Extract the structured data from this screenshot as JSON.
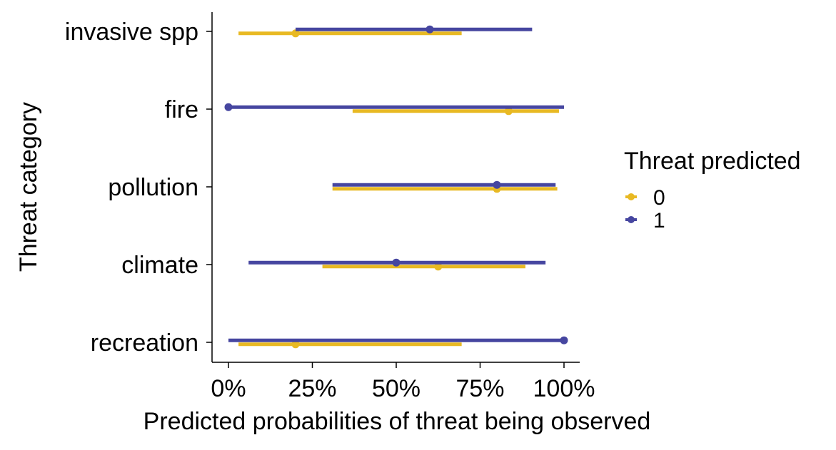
{
  "chart_data": {
    "type": "pointrange",
    "title": "",
    "xlabel": "Predicted probabilities of threat being observed",
    "ylabel": "Threat category",
    "xlim": [
      0,
      1
    ],
    "x_ticks": [
      0,
      0.25,
      0.5,
      0.75,
      1.0
    ],
    "x_tick_labels": [
      "0%",
      "25%",
      "50%",
      "75%",
      "100%"
    ],
    "categories": [
      "invasive spp",
      "fire",
      "pollution",
      "climate",
      "recreation"
    ],
    "legend": {
      "title": "Threat predicted",
      "placement": "right",
      "entries": [
        "0",
        "1"
      ]
    },
    "series": [
      {
        "name": "0",
        "color": "#E8B923",
        "points": [
          {
            "category": "invasive spp",
            "estimate": 0.2,
            "lower": 0.03,
            "upper": 0.695
          },
          {
            "category": "fire",
            "estimate": 0.835,
            "lower": 0.37,
            "upper": 0.985
          },
          {
            "category": "pollution",
            "estimate": 0.8,
            "lower": 0.31,
            "upper": 0.98
          },
          {
            "category": "climate",
            "estimate": 0.625,
            "lower": 0.28,
            "upper": 0.885
          },
          {
            "category": "recreation",
            "estimate": 0.2,
            "lower": 0.03,
            "upper": 0.695
          }
        ]
      },
      {
        "name": "1",
        "color": "#4646A0",
        "points": [
          {
            "category": "invasive spp",
            "estimate": 0.6,
            "lower": 0.2,
            "upper": 0.905
          },
          {
            "category": "fire",
            "estimate": 0.0,
            "lower": 0.0,
            "upper": 1.0
          },
          {
            "category": "pollution",
            "estimate": 0.8,
            "lower": 0.31,
            "upper": 0.975
          },
          {
            "category": "climate",
            "estimate": 0.5,
            "lower": 0.06,
            "upper": 0.945
          },
          {
            "category": "recreation",
            "estimate": 1.0,
            "lower": 0.0,
            "upper": 1.0
          }
        ]
      }
    ]
  }
}
